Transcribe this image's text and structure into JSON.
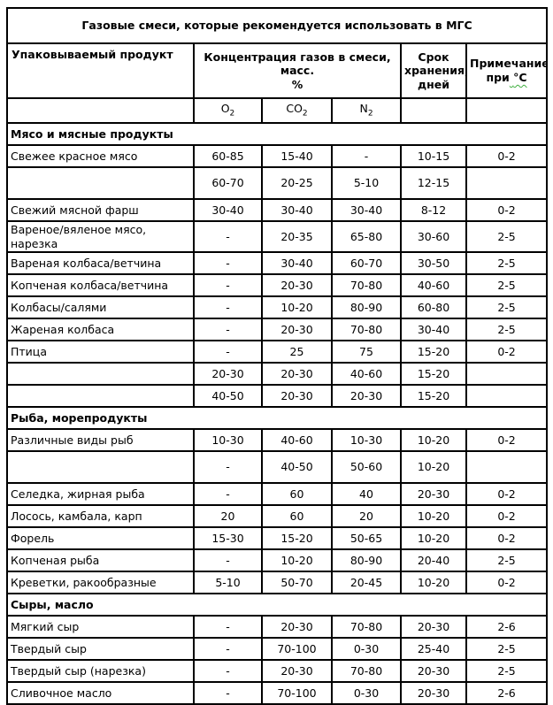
{
  "title": "Газовые смеси, которые рекомендуется использовать в МГС",
  "header": {
    "product": "Упаковываемый продукт",
    "concentration_line1": "Концентрация газов в смеси, масс.",
    "concentration_line2": "%",
    "shelf_life": "Срок хранения, дней",
    "note_line1": "Примечание,",
    "note_word": "при",
    "note_degree": "°С",
    "gases": [
      {
        "base": "O",
        "sub": "2"
      },
      {
        "base": "CO",
        "sub": "2"
      },
      {
        "base": "N",
        "sub": "2"
      }
    ]
  },
  "colors": {
    "border": "#000000",
    "text": "#000000",
    "spellcheck_squiggle": "#3faf3f"
  },
  "sections": [
    {
      "name": "Мясо и мясные продукты",
      "rows": [
        {
          "product": "Свежее красное мясо",
          "o2": "60-85",
          "co2": "15-40",
          "n2": "-",
          "days": "10-15",
          "temp": "0-2"
        },
        {
          "product": "",
          "o2": "60-70",
          "co2": "20-25",
          "n2": "5-10",
          "days": "12-15",
          "temp": "",
          "tall": true
        },
        {
          "product": "Свежий мясной фарш",
          "o2": "30-40",
          "co2": "30-40",
          "n2": "30-40",
          "days": "8-12",
          "temp": "0-2"
        },
        {
          "product": "Вареное/вяленое мясо, нарезка",
          "o2": "-",
          "co2": "20-35",
          "n2": "65-80",
          "days": "30-60",
          "temp": "2-5"
        },
        {
          "product": "Вареная колбаса/ветчина",
          "o2": "-",
          "co2": "30-40",
          "n2": "60-70",
          "days": "30-50",
          "temp": "2-5"
        },
        {
          "product": "Копченая колбаса/ветчина",
          "o2": "-",
          "co2": "20-30",
          "n2": "70-80",
          "days": "40-60",
          "temp": "2-5"
        },
        {
          "product": "Колбасы/салями",
          "o2": "-",
          "co2": "10-20",
          "n2": "80-90",
          "days": "60-80",
          "temp": "2-5"
        },
        {
          "product": "Жареная колбаса",
          "o2": "-",
          "co2": "20-30",
          "n2": "70-80",
          "days": "30-40",
          "temp": "2-5"
        },
        {
          "product": "Птица",
          "o2": "-",
          "co2": "25",
          "n2": "75",
          "days": "15-20",
          "temp": "0-2"
        },
        {
          "product": "",
          "o2": "20-30",
          "co2": "20-30",
          "n2": "40-60",
          "days": "15-20",
          "temp": ""
        },
        {
          "product": "",
          "o2": "40-50",
          "co2": "20-30",
          "n2": "20-30",
          "days": "15-20",
          "temp": ""
        }
      ]
    },
    {
      "name": "Рыба, морепродукты",
      "rows": [
        {
          "product": "Различные виды рыб",
          "o2": "10-30",
          "co2": "40-60",
          "n2": "10-30",
          "days": "10-20",
          "temp": "0-2"
        },
        {
          "product": "",
          "o2": "-",
          "co2": "40-50",
          "n2": "50-60",
          "days": "10-20",
          "temp": "",
          "tall": true
        },
        {
          "product": "Селедка, жирная рыба",
          "o2": "-",
          "co2": "60",
          "n2": "40",
          "days": "20-30",
          "temp": "0-2"
        },
        {
          "product": "Лосось, камбала, карп",
          "o2": "20",
          "co2": "60",
          "n2": "20",
          "days": "10-20",
          "temp": "0-2"
        },
        {
          "product": "Форель",
          "o2": "15-30",
          "co2": "15-20",
          "n2": "50-65",
          "days": "10-20",
          "temp": "0-2"
        },
        {
          "product": "Копченая рыба",
          "o2": "-",
          "co2": "10-20",
          "n2": "80-90",
          "days": "20-40",
          "temp": "2-5"
        },
        {
          "product": "Креветки, ракообразные",
          "o2": "5-10",
          "co2": "50-70",
          "n2": "20-45",
          "days": "10-20",
          "temp": "0-2"
        }
      ]
    },
    {
      "name": "Сыры, масло",
      "rows": [
        {
          "product": "Мягкий сыр",
          "o2": "-",
          "co2": "20-30",
          "n2": "70-80",
          "days": "20-30",
          "temp": "2-6"
        },
        {
          "product": "Твердый сыр",
          "o2": "-",
          "co2": "70-100",
          "n2": "0-30",
          "days": "25-40",
          "temp": "2-5"
        },
        {
          "product": "Твердый сыр (нарезка)",
          "o2": "-",
          "co2": "20-30",
          "n2": "70-80",
          "days": "20-30",
          "temp": "2-5"
        },
        {
          "product": "Сливочное масло",
          "o2": "-",
          "co2": "70-100",
          "n2": "0-30",
          "days": "20-30",
          "temp": "2-6"
        }
      ]
    }
  ]
}
